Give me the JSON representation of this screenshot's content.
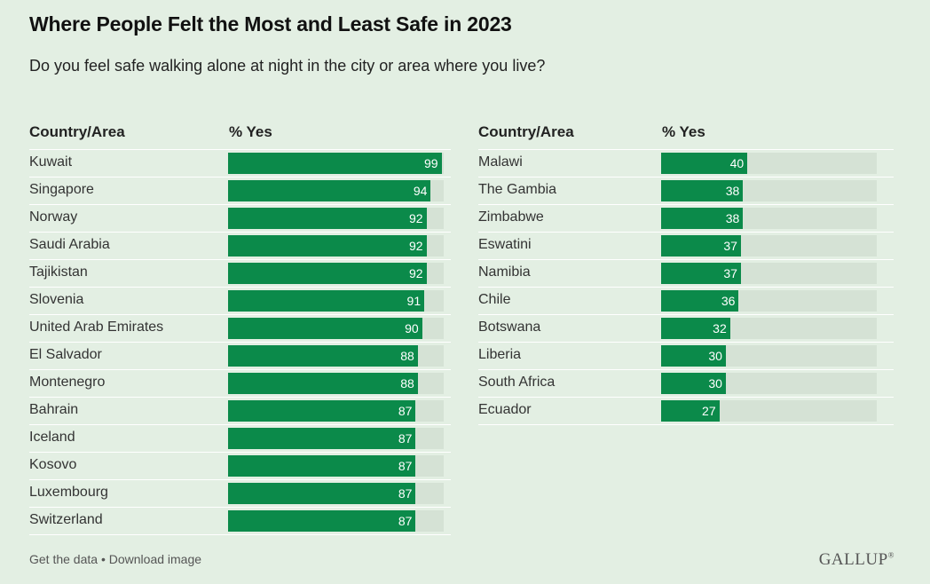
{
  "header": {
    "title": "Where People Felt the Most and Least Safe in 2023",
    "subtitle": "Do you feel safe walking alone at night in the city or area where you live?"
  },
  "tables": {
    "left": {
      "col_country": "Country/Area",
      "col_value": "% Yes"
    },
    "right": {
      "col_country": "Country/Area",
      "col_value": "% Yes"
    }
  },
  "chart_data": [
    {
      "type": "bar",
      "title": "",
      "xlabel": "% Yes",
      "ylabel": "Country/Area",
      "xlim": [
        0,
        100
      ],
      "categories": [
        "Kuwait",
        "Singapore",
        "Norway",
        "Saudi Arabia",
        "Tajikistan",
        "Slovenia",
        "United Arab Emirates",
        "El Salvador",
        "Montenegro",
        "Bahrain",
        "Iceland",
        "Kosovo",
        "Luxembourg",
        "Switzerland"
      ],
      "values": [
        99,
        94,
        92,
        92,
        92,
        91,
        90,
        88,
        88,
        87,
        87,
        87,
        87,
        87
      ]
    },
    {
      "type": "bar",
      "title": "",
      "xlabel": "% Yes",
      "ylabel": "Country/Area",
      "xlim": [
        0,
        100
      ],
      "categories": [
        "Malawi",
        "The Gambia",
        "Zimbabwe",
        "Eswatini",
        "Namibia",
        "Chile",
        "Botswana",
        "Liberia",
        "South Africa",
        "Ecuador"
      ],
      "values": [
        40,
        38,
        38,
        37,
        37,
        36,
        32,
        30,
        30,
        27
      ]
    }
  ],
  "colors": {
    "bar": "#0b8a4a",
    "track": "#d5e2d5",
    "background": "#e3efe3"
  },
  "footer": {
    "get_data": "Get the data",
    "separator": " • ",
    "download": "Download image",
    "logo": "GALLUP"
  },
  "footer_logo_mark": "®"
}
